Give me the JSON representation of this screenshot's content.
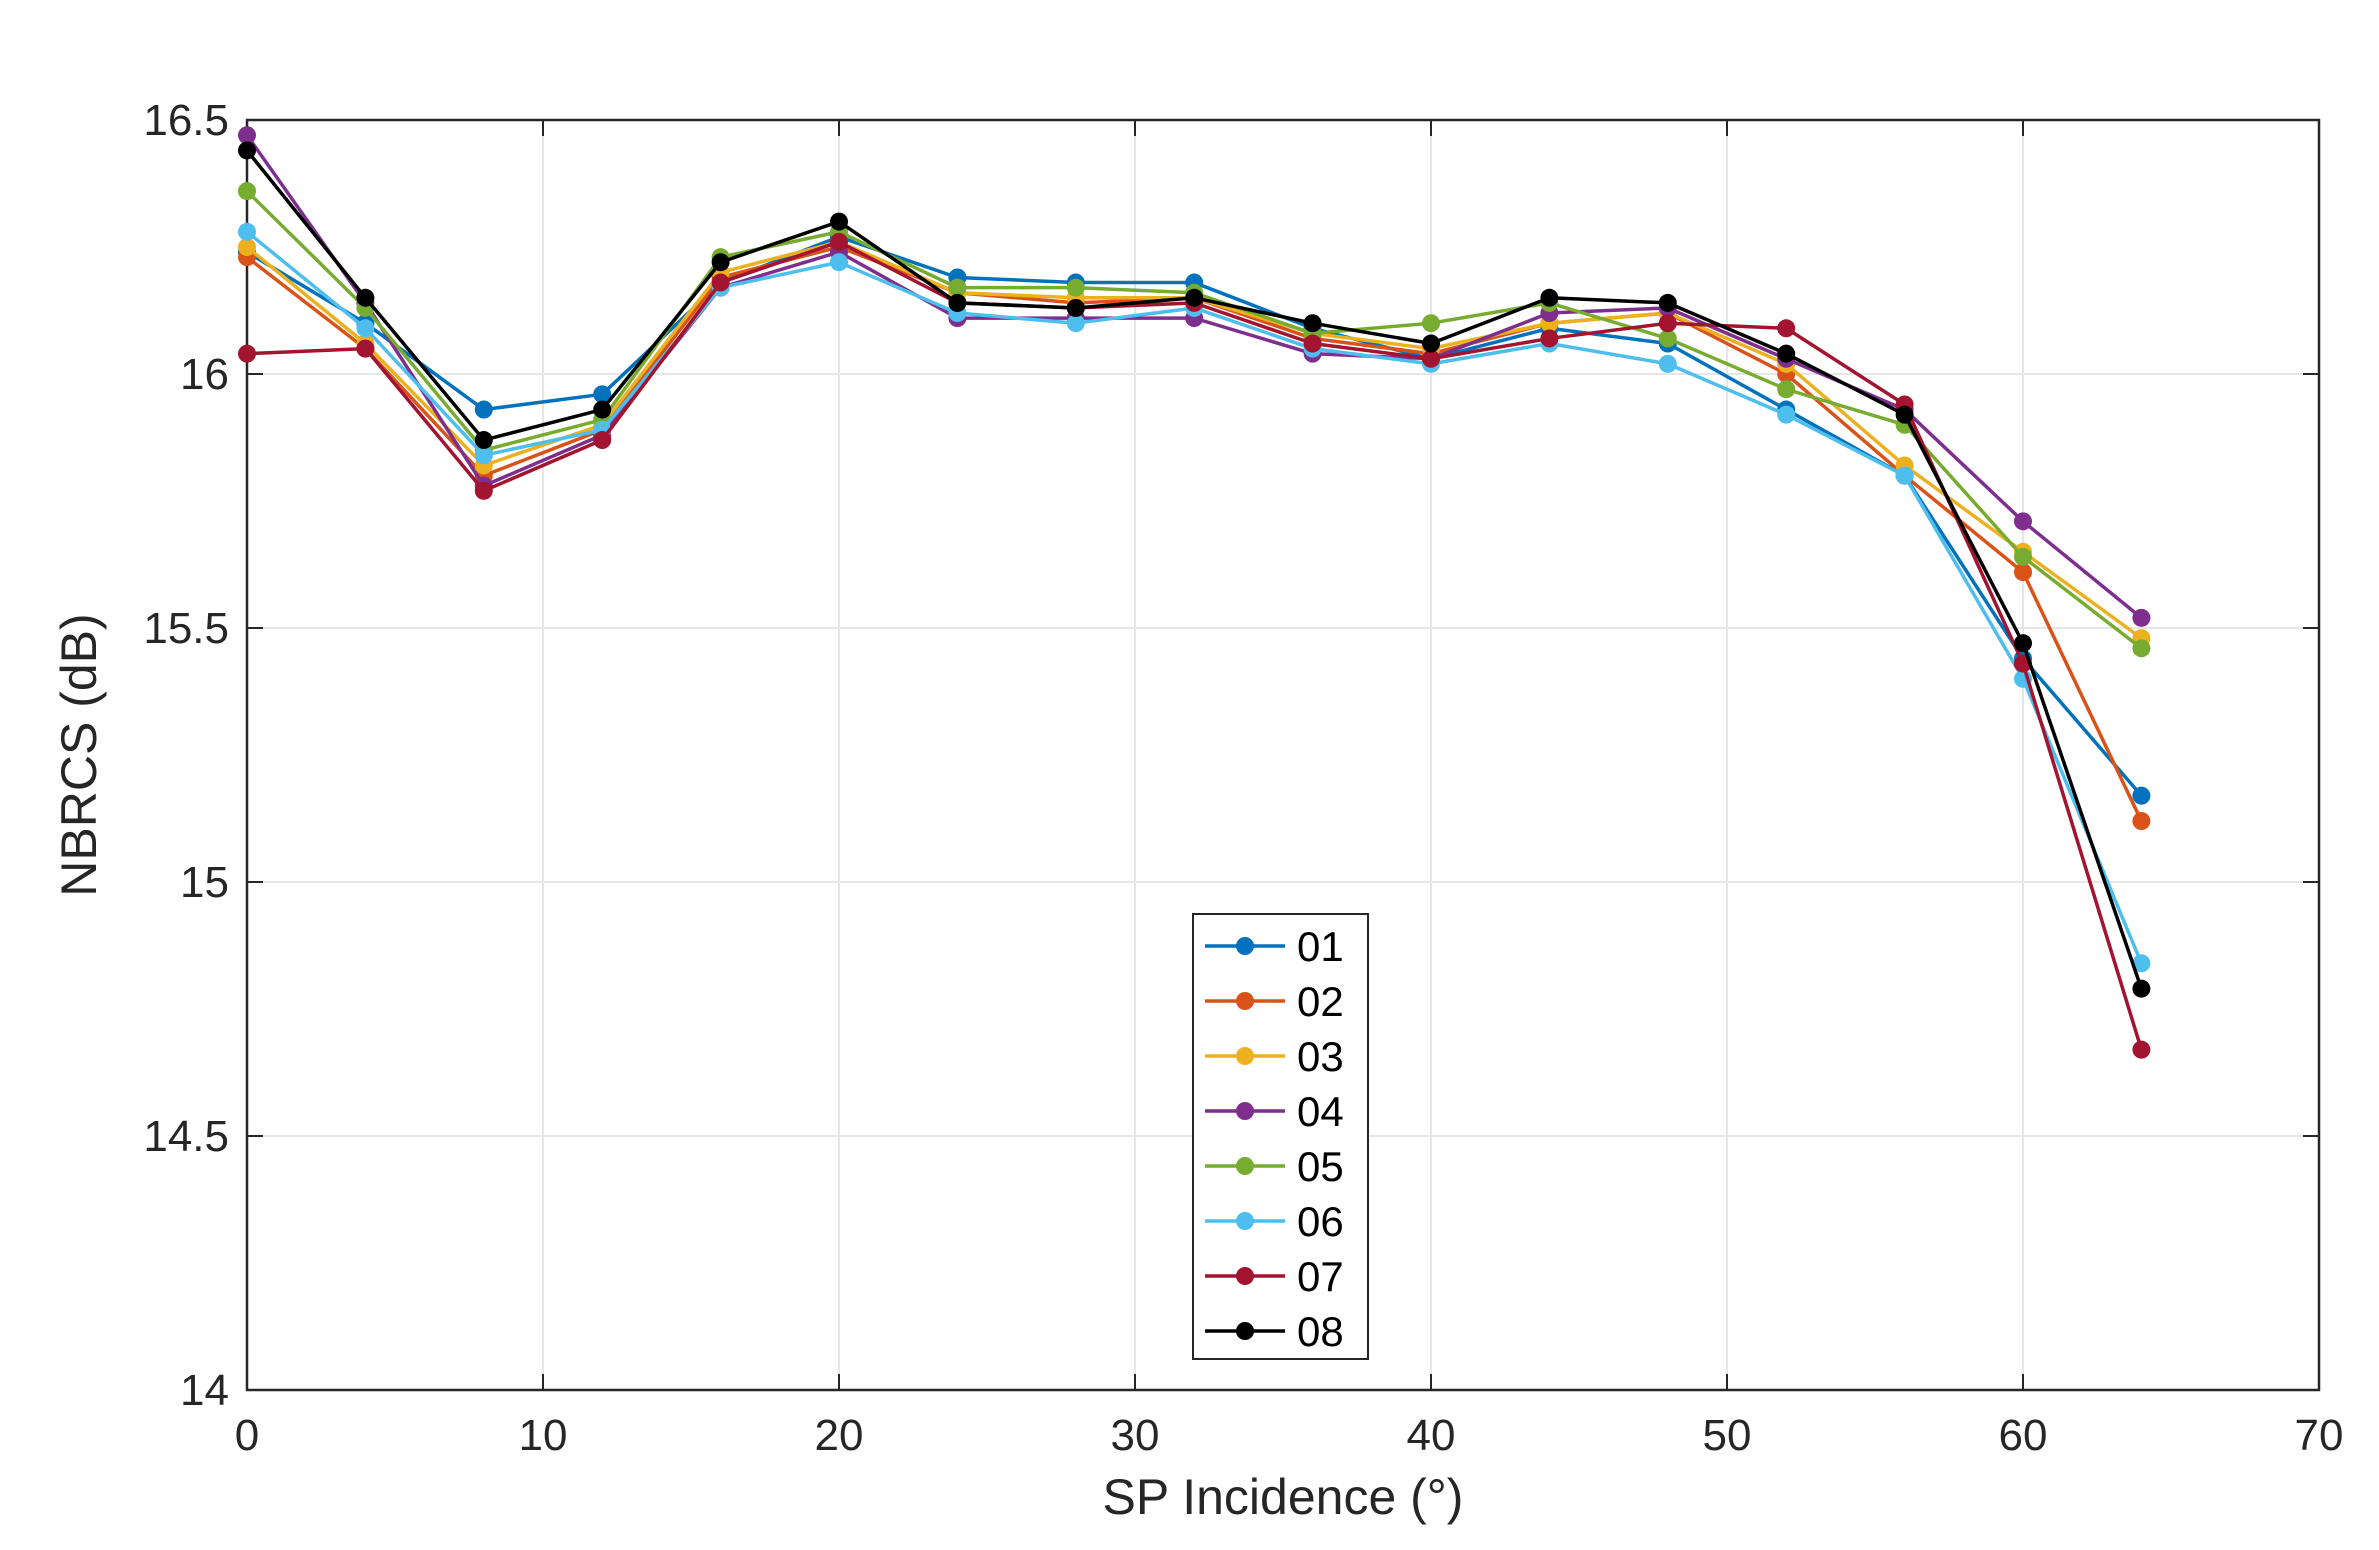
{
  "chart_data": {
    "type": "line",
    "title": "",
    "xlabel": "SP Incidence (°)",
    "ylabel": "NBRCS (dB)",
    "xlim": [
      0,
      70
    ],
    "ylim": [
      14,
      16.5
    ],
    "xticks": [
      0,
      10,
      20,
      30,
      40,
      50,
      60,
      70
    ],
    "yticks": [
      14,
      14.5,
      15,
      15.5,
      16,
      16.5
    ],
    "xtick_labels": [
      "0",
      "10",
      "20",
      "30",
      "40",
      "50",
      "60",
      "70"
    ],
    "ytick_labels": [
      "14",
      "14.5",
      "15",
      "15.5",
      "16",
      "16.5"
    ],
    "grid": true,
    "legend_position": "center-bottom",
    "x": [
      0,
      4,
      8,
      12,
      16,
      20,
      24,
      28,
      32,
      36,
      40,
      44,
      48,
      52,
      56,
      60,
      64
    ],
    "series": [
      {
        "name": "01",
        "color": "#0072BD",
        "values": [
          16.24,
          16.1,
          15.93,
          15.96,
          16.18,
          16.27,
          16.19,
          16.18,
          16.18,
          16.09,
          16.03,
          16.09,
          16.06,
          15.93,
          15.8,
          15.44,
          15.17
        ]
      },
      {
        "name": "02",
        "color": "#D95319",
        "values": [
          16.23,
          16.05,
          15.8,
          15.89,
          16.19,
          16.25,
          16.16,
          16.14,
          16.15,
          16.07,
          16.04,
          16.1,
          16.12,
          16.0,
          15.8,
          15.61,
          15.12
        ]
      },
      {
        "name": "03",
        "color": "#EDB120",
        "values": [
          16.25,
          16.06,
          15.82,
          15.9,
          16.2,
          16.26,
          16.16,
          16.15,
          16.15,
          16.08,
          16.05,
          16.1,
          16.12,
          16.02,
          15.82,
          15.65,
          15.48
        ]
      },
      {
        "name": "04",
        "color": "#7E2F8E",
        "values": [
          16.47,
          16.14,
          15.78,
          15.88,
          16.17,
          16.24,
          16.11,
          16.11,
          16.11,
          16.04,
          16.03,
          16.12,
          16.13,
          16.03,
          15.93,
          15.71,
          15.52
        ]
      },
      {
        "name": "05",
        "color": "#77AC30",
        "values": [
          16.36,
          16.13,
          15.85,
          15.91,
          16.23,
          16.28,
          16.17,
          16.17,
          16.16,
          16.08,
          16.1,
          16.14,
          16.07,
          15.97,
          15.9,
          15.64,
          15.46
        ]
      },
      {
        "name": "06",
        "color": "#4DBEEE",
        "values": [
          16.28,
          16.09,
          15.84,
          15.89,
          16.17,
          16.22,
          16.12,
          16.1,
          16.13,
          16.05,
          16.02,
          16.06,
          16.02,
          15.92,
          15.8,
          15.4,
          14.84
        ]
      },
      {
        "name": "07",
        "color": "#A2142F",
        "values": [
          16.04,
          16.05,
          15.77,
          15.87,
          16.18,
          16.26,
          16.14,
          16.13,
          16.14,
          16.06,
          16.03,
          16.07,
          16.1,
          16.09,
          15.94,
          15.43,
          14.67
        ]
      },
      {
        "name": "08",
        "color": "#000000",
        "values": [
          16.44,
          16.15,
          15.87,
          15.93,
          16.22,
          16.3,
          16.14,
          16.13,
          16.15,
          16.1,
          16.06,
          16.15,
          16.14,
          16.04,
          15.92,
          15.47,
          14.79
        ]
      }
    ]
  }
}
